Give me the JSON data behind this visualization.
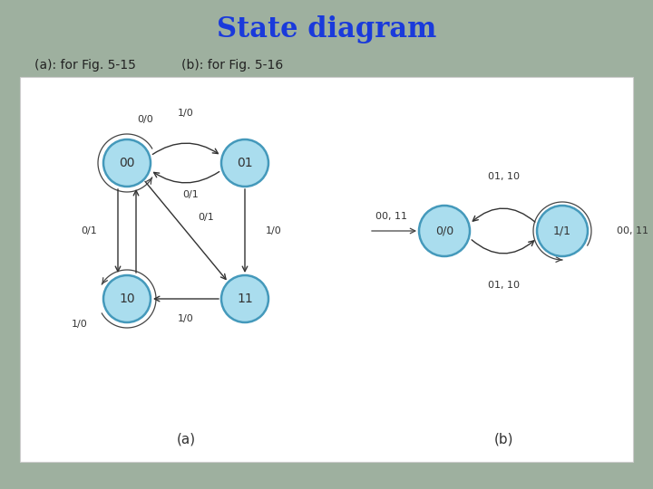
{
  "title": "State diagram",
  "title_color": "#1a3adb",
  "subtitle_a": "(a): for Fig. 5-15",
  "subtitle_b": "(b): for Fig. 5-16",
  "bg_color": "#9eb09f",
  "panel_bg": "#ffffff",
  "node_fill": "#aaddee",
  "node_edge": "#4499bb",
  "text_color": "#222222",
  "caption_a": "(a)",
  "caption_b": "(b)"
}
